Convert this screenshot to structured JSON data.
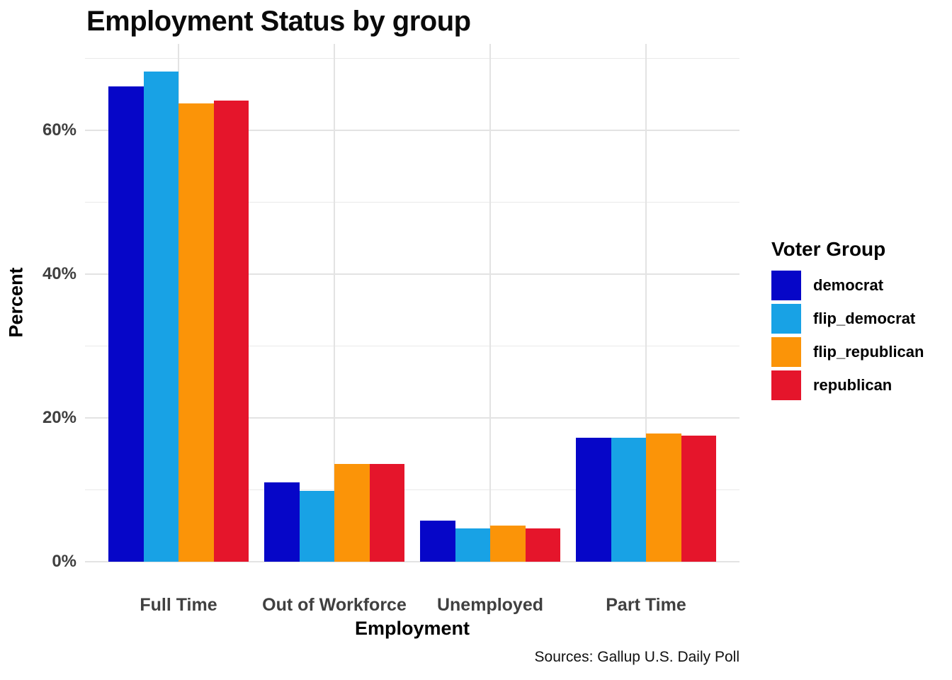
{
  "chart_data": {
    "type": "bar",
    "title": "Employment Status by group",
    "xlabel": "Employment",
    "ylabel": "Percent",
    "caption": "Sources: Gallup U.S. Daily Poll",
    "categories": [
      "Full Time",
      "Out of Workforce",
      "Unemployed",
      "Part Time"
    ],
    "series": [
      {
        "name": "democrat",
        "color": "#0606C8",
        "values": [
          66.1,
          11.0,
          5.7,
          17.2
        ]
      },
      {
        "name": "flip_democrat",
        "color": "#18A2E5",
        "values": [
          68.2,
          9.9,
          4.6,
          17.2
        ]
      },
      {
        "name": "flip_republican",
        "color": "#FB9408",
        "values": [
          63.7,
          13.6,
          5.0,
          17.8
        ]
      },
      {
        "name": "republican",
        "color": "#E5152B",
        "values": [
          64.1,
          13.6,
          4.6,
          17.5
        ]
      }
    ],
    "legend": {
      "title": "Voter Group",
      "position": "right"
    },
    "y_axis": {
      "ylim": [
        0,
        72
      ],
      "major_ticks": [
        {
          "value": 0,
          "label": "0%"
        },
        {
          "value": 20,
          "label": "20%"
        },
        {
          "value": 40,
          "label": "40%"
        },
        {
          "value": 60,
          "label": "60%"
        }
      ],
      "minor_ticks": [
        10,
        30,
        50,
        70
      ],
      "grid": true
    }
  }
}
